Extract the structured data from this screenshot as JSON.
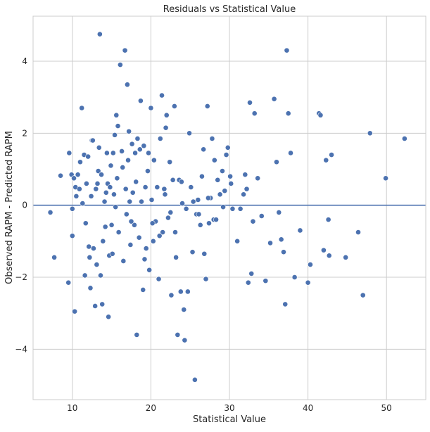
{
  "chart_data": {
    "type": "scatter",
    "title": "Residuals vs Statistical Value",
    "xlabel": "Statistical Value",
    "ylabel": "Observed RAPM - Predicted RAPM",
    "xlim": [
      5,
      55
    ],
    "ylim": [
      -5.4,
      5.25
    ],
    "xticks": [
      10,
      20,
      30,
      40,
      50
    ],
    "yticks": [
      -4,
      -2,
      0,
      2,
      4
    ],
    "grid": true,
    "reference_line_y": 0,
    "colors": {
      "points": "#4c72b0",
      "point_edge": "#ffffff",
      "reference_line": "#4c72b0",
      "grid": "#cccccc",
      "axes_edge": "#cccccc",
      "text": "#262626"
    },
    "points": [
      [
        7.2,
        -0.2
      ],
      [
        7.7,
        -1.45
      ],
      [
        8.5,
        0.82
      ],
      [
        9.5,
        -2.15
      ],
      [
        9.6,
        1.45
      ],
      [
        9.9,
        0.85
      ],
      [
        10.0,
        -0.1
      ],
      [
        10.0,
        -0.85
      ],
      [
        10.2,
        0.75
      ],
      [
        10.3,
        -2.95
      ],
      [
        10.4,
        0.5
      ],
      [
        10.5,
        0.25
      ],
      [
        10.7,
        0.85
      ],
      [
        10.9,
        0.45
      ],
      [
        11.2,
        2.7
      ],
      [
        11.3,
        0.05
      ],
      [
        11.5,
        1.4
      ],
      [
        11.7,
        -0.5
      ],
      [
        11.8,
        0.6
      ],
      [
        12.0,
        1.35
      ],
      [
        12.1,
        -1.15
      ],
      [
        12.2,
        -1.45
      ],
      [
        12.3,
        -2.3
      ],
      [
        12.4,
        0.25
      ],
      [
        12.5,
        1.8
      ],
      [
        12.7,
        -1.2
      ],
      [
        12.9,
        -2.8
      ],
      [
        13.0,
        0.45
      ],
      [
        13.1,
        -1.65
      ],
      [
        13.3,
        0.95
      ],
      [
        13.4,
        1.6
      ],
      [
        13.5,
        4.75
      ],
      [
        13.6,
        -1.95
      ],
      [
        13.7,
        0.85
      ],
      [
        13.8,
        -2.75
      ],
      [
        13.9,
        -1.0
      ],
      [
        14.1,
        0.1
      ],
      [
        14.2,
        -0.6
      ],
      [
        14.3,
        0.35
      ],
      [
        14.4,
        1.45
      ],
      [
        14.5,
        0.6
      ],
      [
        14.6,
        -3.1
      ],
      [
        14.7,
        -1.4
      ],
      [
        14.9,
        1.1
      ],
      [
        15.0,
        -0.55
      ],
      [
        15.1,
        -1.35
      ],
      [
        15.3,
        0.3
      ],
      [
        15.4,
        1.95
      ],
      [
        15.5,
        -0.05
      ],
      [
        15.6,
        2.5
      ],
      [
        15.7,
        0.75
      ],
      [
        15.8,
        2.2
      ],
      [
        15.9,
        -0.75
      ],
      [
        16.1,
        3.9
      ],
      [
        16.3,
        1.5
      ],
      [
        16.5,
        -1.55
      ],
      [
        16.7,
        4.3
      ],
      [
        16.8,
        0.45
      ],
      [
        16.9,
        -0.25
      ],
      [
        17.0,
        3.35
      ],
      [
        17.2,
        2.05
      ],
      [
        17.3,
        0.1
      ],
      [
        17.4,
        -1.1
      ],
      [
        17.6,
        1.7
      ],
      [
        17.7,
        0.35
      ],
      [
        17.9,
        -0.55
      ],
      [
        18.0,
        1.45
      ],
      [
        18.2,
        -3.6
      ],
      [
        18.3,
        1.85
      ],
      [
        18.5,
        -0.9
      ],
      [
        18.7,
        2.9
      ],
      [
        18.8,
        0.1
      ],
      [
        19.0,
        -2.35
      ],
      [
        19.1,
        1.65
      ],
      [
        19.3,
        0.5
      ],
      [
        19.4,
        -1.2
      ],
      [
        19.6,
        0.95
      ],
      [
        19.8,
        -1.8
      ],
      [
        20.0,
        2.7
      ],
      [
        20.1,
        0.15
      ],
      [
        20.3,
        -1.0
      ],
      [
        20.4,
        1.25
      ],
      [
        20.6,
        -0.45
      ],
      [
        20.8,
        0.5
      ],
      [
        21.0,
        -2.05
      ],
      [
        21.2,
        1.85
      ],
      [
        21.4,
        3.05
      ],
      [
        21.5,
        -0.75
      ],
      [
        21.7,
        0.45
      ],
      [
        21.9,
        2.15
      ],
      [
        22.0,
        2.5
      ],
      [
        22.2,
        -0.35
      ],
      [
        22.4,
        1.2
      ],
      [
        22.6,
        -2.5
      ],
      [
        22.8,
        0.7
      ],
      [
        23.0,
        2.75
      ],
      [
        23.2,
        -1.45
      ],
      [
        23.4,
        -3.6
      ],
      [
        23.6,
        0.7
      ],
      [
        23.8,
        -2.4
      ],
      [
        24.0,
        0.05
      ],
      [
        24.2,
        -2.9
      ],
      [
        24.3,
        -3.75
      ],
      [
        24.5,
        -0.1
      ],
      [
        24.7,
        -2.4
      ],
      [
        24.9,
        2.0
      ],
      [
        25.1,
        0.5
      ],
      [
        25.3,
        -1.3
      ],
      [
        25.6,
        -4.85
      ],
      [
        25.8,
        -0.25
      ],
      [
        26.0,
        0.15
      ],
      [
        26.3,
        -0.55
      ],
      [
        26.5,
        0.8
      ],
      [
        26.7,
        1.55
      ],
      [
        26.8,
        -1.35
      ],
      [
        27.0,
        -2.05
      ],
      [
        27.2,
        2.75
      ],
      [
        27.4,
        -0.5
      ],
      [
        27.6,
        0.2
      ],
      [
        27.8,
        1.85
      ],
      [
        28.0,
        -0.4
      ],
      [
        28.3,
        -0.4
      ],
      [
        28.5,
        0.7
      ],
      [
        28.8,
        0.3
      ],
      [
        29.1,
        0.95
      ],
      [
        29.4,
        0.4
      ],
      [
        29.6,
        1.4
      ],
      [
        29.8,
        1.6
      ],
      [
        30.1,
        0.8
      ],
      [
        30.4,
        -0.1
      ],
      [
        31.0,
        -1.0
      ],
      [
        31.4,
        -0.1
      ],
      [
        32.0,
        0.85
      ],
      [
        32.2,
        0.45
      ],
      [
        32.4,
        -2.15
      ],
      [
        32.6,
        2.85
      ],
      [
        32.8,
        -1.9
      ],
      [
        33.2,
        2.55
      ],
      [
        33.6,
        0.75
      ],
      [
        34.1,
        -0.3
      ],
      [
        34.6,
        -2.1
      ],
      [
        35.2,
        -1.05
      ],
      [
        35.7,
        2.95
      ],
      [
        36.3,
        -0.2
      ],
      [
        36.6,
        -0.95
      ],
      [
        36.9,
        -1.3
      ],
      [
        37.1,
        -2.75
      ],
      [
        37.3,
        4.3
      ],
      [
        37.5,
        2.55
      ],
      [
        37.8,
        1.45
      ],
      [
        38.3,
        -2.0
      ],
      [
        39.0,
        -0.7
      ],
      [
        40.0,
        -2.15
      ],
      [
        40.3,
        -1.65
      ],
      [
        41.4,
        2.55
      ],
      [
        42.0,
        -1.25
      ],
      [
        42.3,
        1.25
      ],
      [
        42.7,
        -1.4
      ],
      [
        43.0,
        1.4
      ],
      [
        44.8,
        -1.45
      ],
      [
        46.4,
        -0.75
      ],
      [
        47.0,
        -2.5
      ],
      [
        47.9,
        2.0
      ],
      [
        49.9,
        0.75
      ],
      [
        52.3,
        1.85
      ],
      [
        11.0,
        1.2
      ],
      [
        11.6,
        -1.95
      ],
      [
        12.6,
        1.8
      ],
      [
        13.2,
        0.6
      ],
      [
        14.8,
        0.5
      ],
      [
        15.2,
        1.45
      ],
      [
        16.4,
        1.05
      ],
      [
        17.1,
        1.25
      ],
      [
        17.5,
        -0.45
      ],
      [
        18.1,
        0.65
      ],
      [
        18.6,
        1.55
      ],
      [
        19.2,
        -1.5
      ],
      [
        19.7,
        1.45
      ],
      [
        20.2,
        -0.5
      ],
      [
        21.1,
        -0.85
      ],
      [
        21.8,
        0.3
      ],
      [
        22.5,
        -0.2
      ],
      [
        23.1,
        -0.75
      ],
      [
        23.9,
        0.65
      ],
      [
        25.4,
        0.1
      ],
      [
        26.1,
        -0.25
      ],
      [
        27.3,
        0.2
      ],
      [
        28.1,
        1.25
      ],
      [
        29.2,
        -0.05
      ],
      [
        30.2,
        0.6
      ],
      [
        31.8,
        0.3
      ],
      [
        33.0,
        -0.45
      ],
      [
        36.0,
        1.2
      ],
      [
        41.6,
        2.5
      ],
      [
        42.6,
        -0.4
      ]
    ]
  }
}
